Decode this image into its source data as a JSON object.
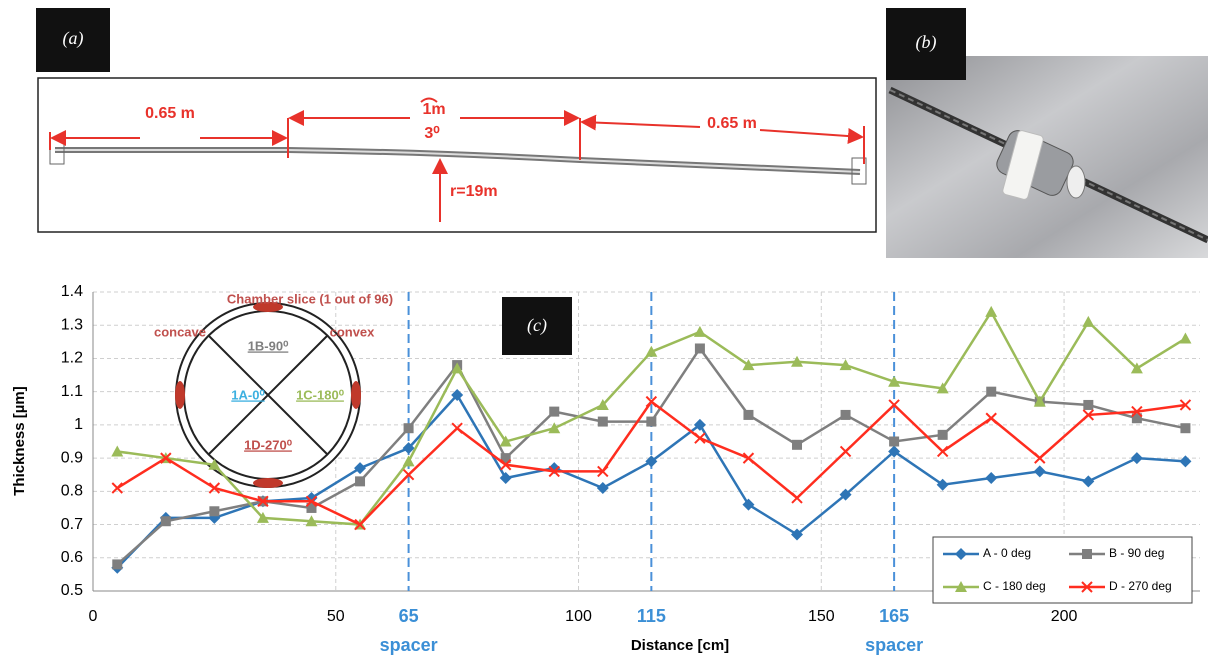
{
  "panels": {
    "a": {
      "label": "(a)",
      "left": "0.65 m",
      "arc": "1m",
      "angle": "3⁰",
      "right": "0.65 m",
      "radius": "r=19m"
    },
    "b": {
      "label": "(b)"
    },
    "c": {
      "label": "(c)"
    }
  },
  "chart_data": {
    "type": "line",
    "x_label": "Distance [cm]",
    "y_label": "Thickness [µm]",
    "x": [
      5,
      15,
      25,
      35,
      45,
      55,
      65,
      75,
      85,
      95,
      105,
      115,
      125,
      135,
      145,
      155,
      165,
      175,
      185,
      195,
      205,
      215,
      225
    ],
    "series": [
      {
        "name": "A - 0 deg",
        "color": "#2e75b6",
        "marker": "diamond",
        "values": [
          0.57,
          0.72,
          0.72,
          0.77,
          0.78,
          0.87,
          0.93,
          1.09,
          0.84,
          0.87,
          0.81,
          0.89,
          1.0,
          0.76,
          0.67,
          0.79,
          0.92,
          0.82,
          0.84,
          0.86,
          0.83,
          0.9,
          0.89
        ]
      },
      {
        "name": "B - 90 deg",
        "color": "#7f7f7f",
        "marker": "square",
        "values": [
          0.58,
          0.71,
          0.74,
          0.77,
          0.75,
          0.83,
          0.99,
          1.18,
          0.9,
          1.04,
          1.01,
          1.01,
          1.23,
          1.03,
          0.94,
          1.03,
          0.95,
          0.97,
          1.1,
          1.07,
          1.06,
          1.02,
          0.99
        ]
      },
      {
        "name": "C - 180 deg",
        "color": "#9bbb59",
        "marker": "triangle",
        "values": [
          0.92,
          0.9,
          0.88,
          0.72,
          0.71,
          0.7,
          0.89,
          1.17,
          0.95,
          0.99,
          1.06,
          1.22,
          1.28,
          1.18,
          1.19,
          1.18,
          1.13,
          1.11,
          1.34,
          1.07,
          1.31,
          1.17,
          1.26
        ]
      },
      {
        "name": "D - 270 deg",
        "color": "#ff2d1f",
        "marker": "x",
        "values": [
          0.81,
          0.9,
          0.81,
          0.77,
          0.77,
          0.7,
          0.85,
          0.99,
          0.88,
          0.86,
          0.86,
          1.07,
          0.96,
          0.9,
          0.78,
          0.92,
          1.06,
          0.92,
          1.02,
          0.9,
          1.03,
          1.04,
          1.06
        ]
      }
    ],
    "xlim": [
      0,
      228
    ],
    "xticks": [
      0,
      50,
      100,
      150,
      200
    ],
    "ylim": [
      0.5,
      1.4
    ],
    "yticks": [
      0.5,
      0.6,
      0.7,
      0.8,
      0.9,
      1.0,
      1.1,
      1.2,
      1.3,
      1.4
    ],
    "grid": true,
    "legend": "bottom-right",
    "markers": [
      {
        "x": 65,
        "text": "spacer"
      },
      {
        "x": 115
      },
      {
        "x": 165,
        "text": "spacer"
      }
    ],
    "inset": {
      "title": "Chamber slice (1 out of 96)",
      "left": "concave",
      "right": "convex",
      "top": "1B-90⁰",
      "west": "1A-0⁰",
      "east": "1C-180⁰",
      "bottom": "1D-270⁰"
    }
  }
}
